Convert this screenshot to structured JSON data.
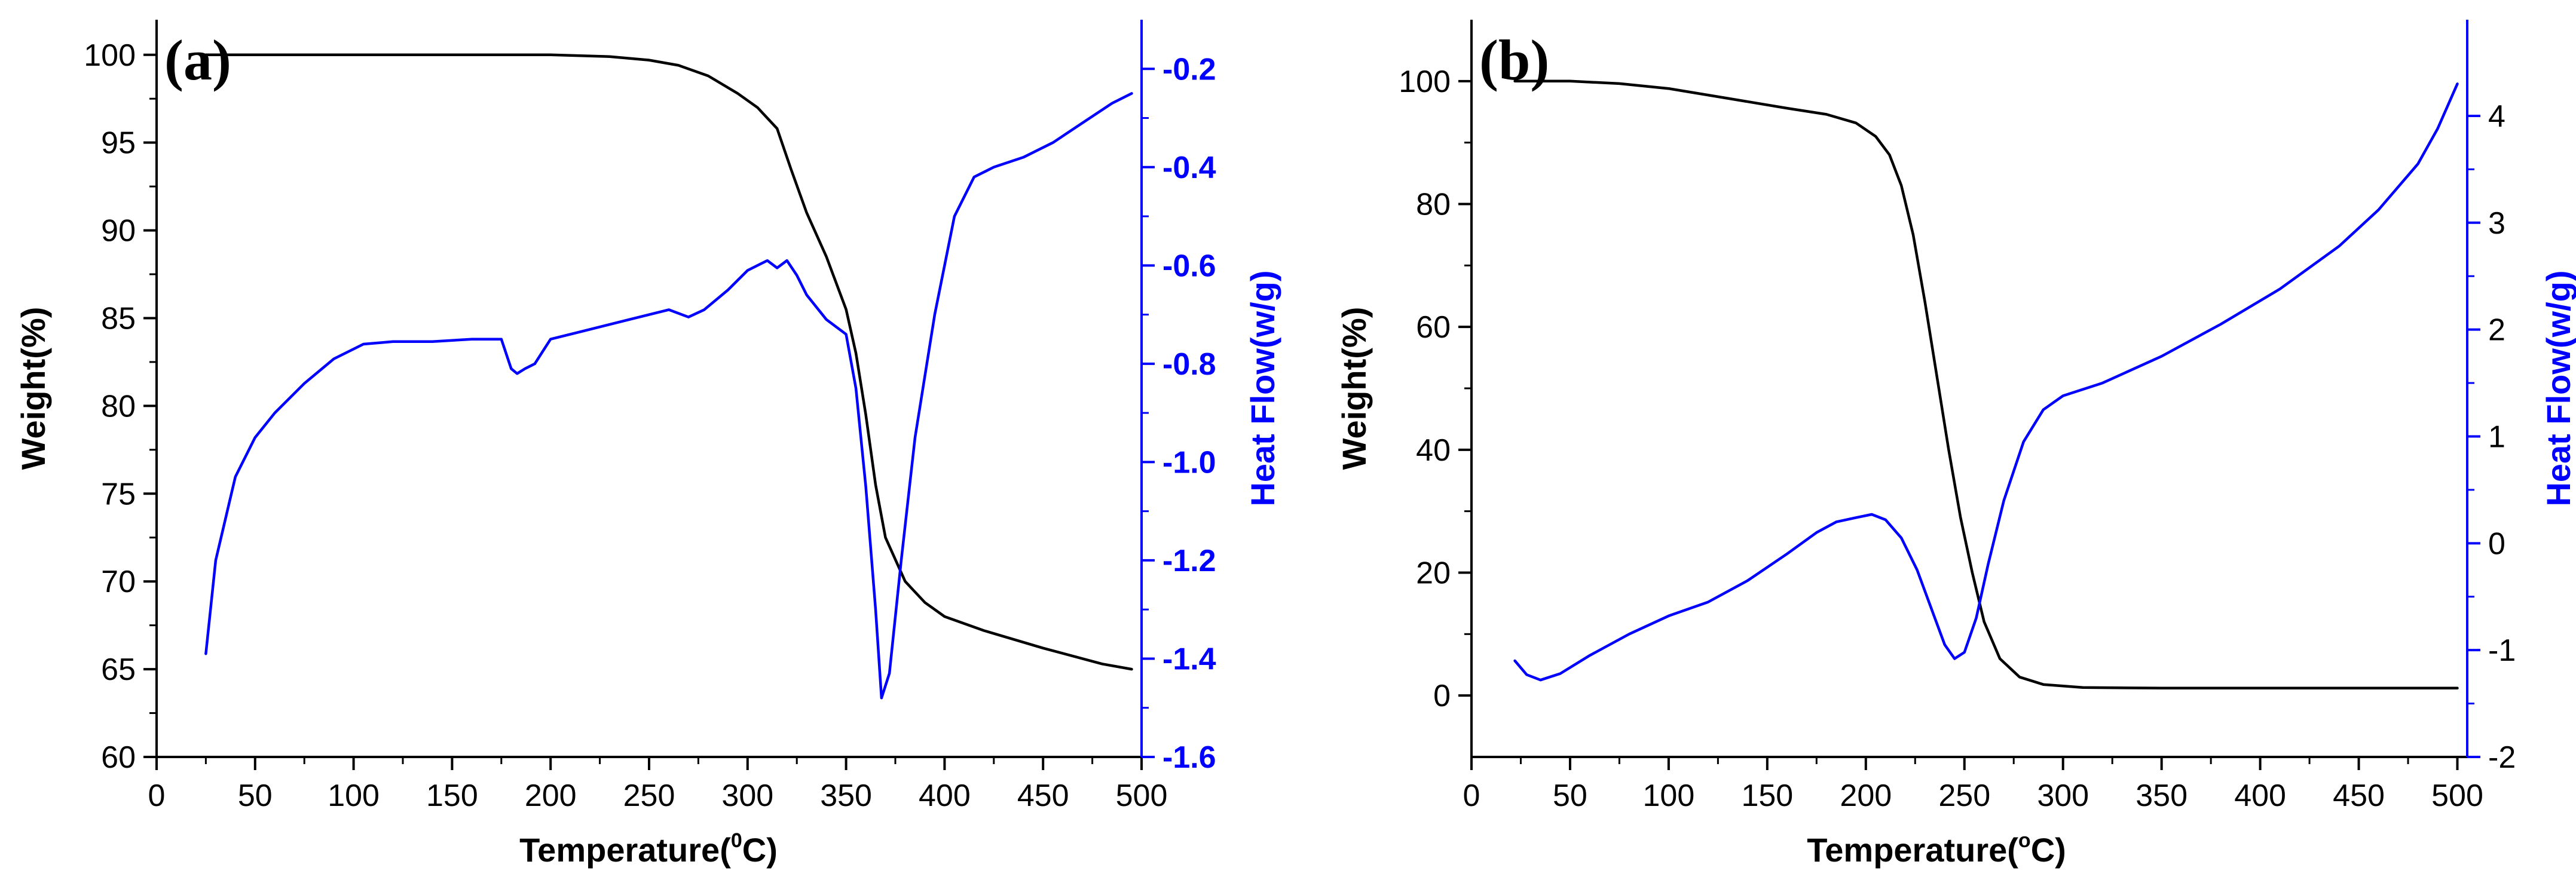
{
  "chart_data": [
    {
      "type": "line",
      "panel_label": "(a)",
      "xlabel_main": "Temperature(",
      "xlabel_sup": "0",
      "xlabel_end": "C)",
      "ylabel_left": "Weight(%)",
      "ylabel_right": "Heat Flow(w/g)",
      "left_color": "#000000",
      "right_color": "#0000ff",
      "xlim": [
        0,
        500
      ],
      "ylim_left": [
        60,
        102
      ],
      "ylim_right": [
        -1.6,
        -0.1
      ],
      "xticks": [
        0,
        50,
        100,
        150,
        200,
        250,
        300,
        350,
        400,
        450,
        500
      ],
      "yticks_left": [
        60,
        65,
        70,
        75,
        80,
        85,
        90,
        95,
        100
      ],
      "yticks_right": [
        -1.6,
        -1.4,
        -1.2,
        -1.0,
        -0.8,
        -0.6,
        -0.4,
        -0.2
      ],
      "yticks_right_labels": [
        "-1.6",
        "-1.4",
        "-1.2",
        "-1.0",
        "-0.8",
        "-0.6",
        "-0.4",
        "-0.2"
      ],
      "series": [
        {
          "name": "Weight",
          "axis": "left",
          "color": "#000000",
          "x": [
            25,
            50,
            100,
            150,
            200,
            230,
            250,
            265,
            280,
            295,
            305,
            315,
            322,
            330,
            340,
            350,
            355,
            360,
            365,
            370,
            380,
            390,
            400,
            420,
            450,
            480,
            495
          ],
          "y": [
            100,
            100,
            100,
            100,
            100,
            99.9,
            99.7,
            99.4,
            98.8,
            97.8,
            97.0,
            95.8,
            93.5,
            91.0,
            88.5,
            85.5,
            83,
            79.5,
            75.5,
            72.5,
            70,
            68.8,
            68,
            67.2,
            66.2,
            65.3,
            65
          ]
        },
        {
          "name": "Heat Flow",
          "axis": "right",
          "color": "#0000ff",
          "x": [
            25,
            30,
            40,
            50,
            60,
            75,
            90,
            105,
            120,
            140,
            160,
            175,
            180,
            183,
            187,
            192,
            200,
            215,
            240,
            260,
            270,
            278,
            290,
            300,
            310,
            315,
            320,
            325,
            330,
            340,
            350,
            355,
            360,
            365,
            368,
            372,
            378,
            385,
            395,
            405,
            415,
            425,
            440,
            455,
            470,
            485,
            495
          ],
          "y": [
            -1.39,
            -1.2,
            -1.03,
            -0.95,
            -0.9,
            -0.84,
            -0.79,
            -0.76,
            -0.755,
            -0.755,
            -0.75,
            -0.75,
            -0.81,
            -0.82,
            -0.81,
            -0.8,
            -0.75,
            -0.735,
            -0.71,
            -0.69,
            -0.705,
            -0.69,
            -0.65,
            -0.61,
            -0.59,
            -0.605,
            -0.59,
            -0.62,
            -0.66,
            -0.71,
            -0.74,
            -0.85,
            -1.05,
            -1.3,
            -1.48,
            -1.43,
            -1.2,
            -0.95,
            -0.7,
            -0.5,
            -0.42,
            -0.4,
            -0.38,
            -0.35,
            -0.31,
            -0.27,
            -0.25
          ]
        }
      ]
    },
    {
      "type": "line",
      "panel_label": "(b)",
      "xlabel_main": "Temperature(",
      "xlabel_sup": "o",
      "xlabel_end": "C)",
      "ylabel_left": "Weight(%)",
      "ylabel_right": "Heat Flow(w/g)",
      "left_color": "#000000",
      "right_color": "#0000ff",
      "xlim": [
        0,
        505
      ],
      "ylim_left": [
        -10,
        110
      ],
      "ylim_right": [
        -2,
        4.9
      ],
      "xticks": [
        0,
        50,
        100,
        150,
        200,
        250,
        300,
        350,
        400,
        450,
        500
      ],
      "yticks_left": [
        0,
        20,
        40,
        60,
        80,
        100
      ],
      "yticks_right": [
        -2,
        -1,
        0,
        1,
        2,
        3,
        4
      ],
      "yticks_right_labels": [
        "-2",
        "-1",
        "0",
        "1",
        "2",
        "3",
        "4"
      ],
      "series": [
        {
          "name": "Weight",
          "axis": "left",
          "color": "#000000",
          "x": [
            22,
            50,
            75,
            100,
            130,
            160,
            180,
            195,
            205,
            212,
            218,
            224,
            230,
            236,
            242,
            248,
            254,
            260,
            268,
            278,
            290,
            310,
            350,
            400,
            450,
            500
          ],
          "y": [
            100,
            100,
            99.6,
            98.8,
            97.2,
            95.6,
            94.6,
            93.2,
            91,
            88,
            83,
            75,
            64,
            52,
            40,
            29,
            20,
            12,
            6,
            3,
            1.8,
            1.3,
            1.2,
            1.2,
            1.2,
            1.2
          ]
        },
        {
          "name": "Heat Flow",
          "axis": "right",
          "color": "#0000ff",
          "x": [
            22,
            28,
            35,
            45,
            60,
            80,
            100,
            120,
            140,
            160,
            175,
            185,
            195,
            203,
            210,
            218,
            226,
            234,
            240,
            245,
            250,
            256,
            262,
            270,
            280,
            290,
            300,
            320,
            350,
            380,
            410,
            440,
            460,
            480,
            490,
            500
          ],
          "y": [
            -1.1,
            -1.23,
            -1.28,
            -1.22,
            -1.05,
            -0.85,
            -0.68,
            -0.55,
            -0.35,
            -0.1,
            0.1,
            0.2,
            0.24,
            0.27,
            0.22,
            0.05,
            -0.25,
            -0.65,
            -0.95,
            -1.08,
            -1.02,
            -0.7,
            -0.2,
            0.4,
            0.95,
            1.25,
            1.38,
            1.5,
            1.75,
            2.05,
            2.38,
            2.78,
            3.12,
            3.55,
            3.88,
            4.3
          ]
        }
      ]
    }
  ]
}
